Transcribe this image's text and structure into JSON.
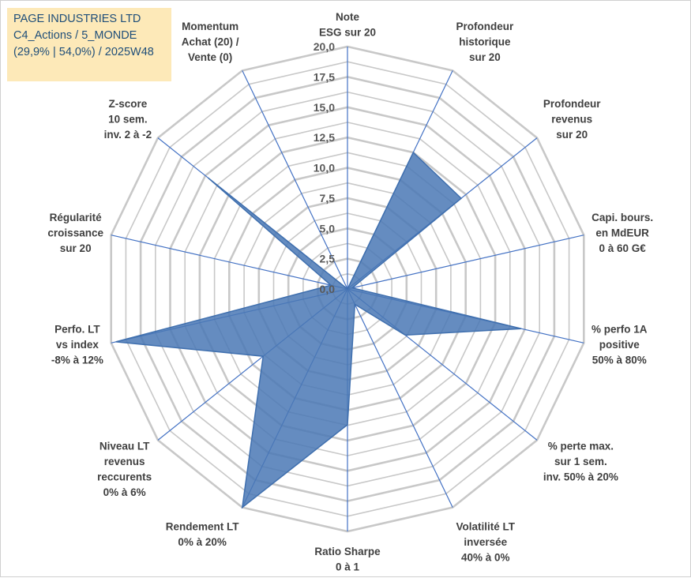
{
  "title_box": {
    "line1": "PAGE INDUSTRIES LTD",
    "line2": "C4_Actions / 5_MONDE",
    "line3": "(29,9% | 54,0%) / 2025W48"
  },
  "colors": {
    "fill": "#4a78b5",
    "stroke": "#3f6fae",
    "spoke": "#4472c4",
    "grid": "#c8c8c8",
    "title_bg": "#fde9b8",
    "title_text": "#1f4e79"
  },
  "chart_data": {
    "type": "radar",
    "rlim": [
      0,
      20
    ],
    "ticks": [
      "0,0",
      "2,5",
      "5,0",
      "7,5",
      "10,0",
      "12,5",
      "15,0",
      "17,5",
      "20,0"
    ],
    "axes": [
      {
        "label": [
          "Note",
          "ESG sur 20"
        ],
        "value": 0
      },
      {
        "label": [
          "Profondeur",
          "historique",
          "sur 20"
        ],
        "value": 12.5
      },
      {
        "label": [
          "Profondeur",
          "revenus",
          "sur 20"
        ],
        "value": 12.0
      },
      {
        "label": [
          "Capi. bours.",
          "en MdEUR",
          "0 à 60 G€"
        ],
        "value": 0.4
      },
      {
        "label": [
          "% perfo 1A",
          "positive",
          "50% à 80%"
        ],
        "value": 14.7
      },
      {
        "label": [
          "% perte max.",
          "sur 1 sem.",
          "inv. 50% à 20%"
        ],
        "value": 6.1
      },
      {
        "label": [
          "Volatilité LT",
          "inversée",
          "40% à 0%"
        ],
        "value": 1.4
      },
      {
        "label": [
          "Ratio Sharpe",
          "0 à 1"
        ],
        "value": 11.2
      },
      {
        "label": [
          "Rendement LT",
          "0% à 20%"
        ],
        "value": 20.0
      },
      {
        "label": [
          "Niveau LT",
          "revenus",
          "reccurents",
          "0% à 6%"
        ],
        "value": 8.9
      },
      {
        "label": [
          "Perfo. LT",
          "vs index",
          "-8% à 12%"
        ],
        "value": 19.6
      },
      {
        "label": [
          "Régularité",
          "croissance",
          "sur 20"
        ],
        "value": 1.4
      },
      {
        "label": [
          "Z-score",
          "10 sem.",
          "inv. 2 à -2"
        ],
        "value": 14.7
      },
      {
        "label": [
          "Momentum",
          "Achat (20) /",
          "Vente (0)"
        ],
        "value": 0
      }
    ]
  }
}
